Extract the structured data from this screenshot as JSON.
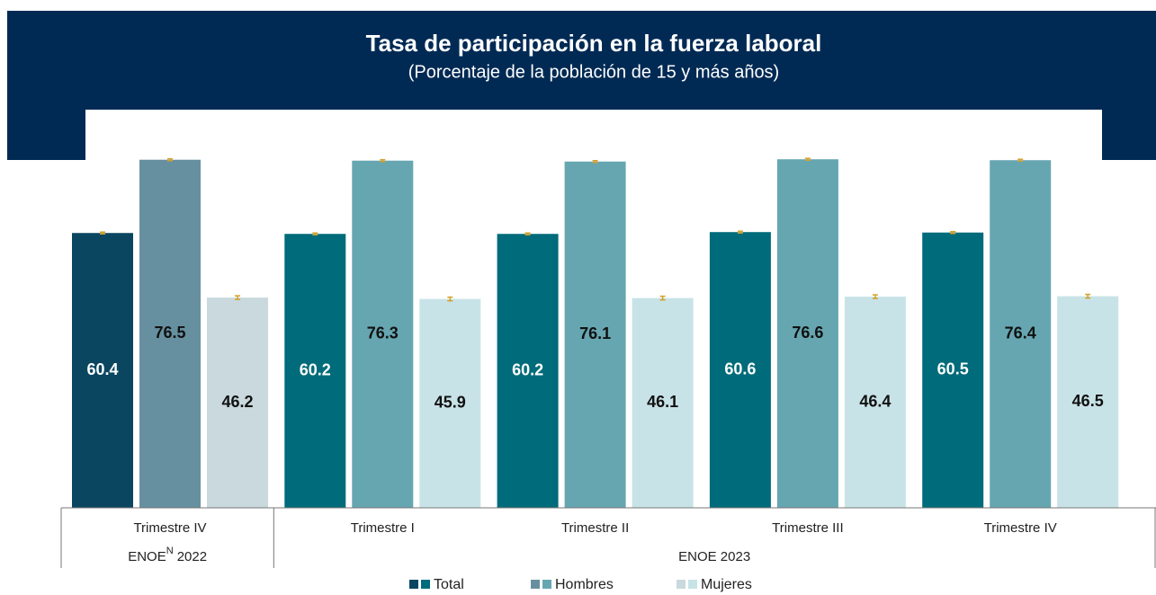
{
  "chart_data": {
    "type": "bar",
    "title": "Tasa de participación en la fuerza laboral",
    "subtitle": "(Porcentaje de la población de 15 y más años)",
    "categories": [
      "Trimestre IV",
      "Trimestre I",
      "Trimestre II",
      "Trimestre III",
      "Trimestre IV"
    ],
    "groups": [
      {
        "name": "ENOE",
        "superscript": "N",
        "year": "2022",
        "size": 1
      },
      {
        "name": "ENOE 2023",
        "size": 4
      }
    ],
    "series": [
      {
        "name": "Total",
        "colors": [
          "#0b4660",
          "#006b7a",
          "#006b7a",
          "#006b7a",
          "#006b7a"
        ],
        "values": [
          60.4,
          60.2,
          60.2,
          60.6,
          60.5
        ],
        "errors": [
          0.2,
          0.2,
          0.2,
          0.2,
          0.2
        ]
      },
      {
        "name": "Hombres",
        "colors": [
          "#6690a0",
          "#66a6b1",
          "#66a6b1",
          "#66a6b1",
          "#66a6b1"
        ],
        "values": [
          76.5,
          76.3,
          76.1,
          76.6,
          76.4
        ],
        "errors": [
          0.2,
          0.2,
          0.2,
          0.2,
          0.2
        ]
      },
      {
        "name": "Mujeres",
        "colors": [
          "#c9d9de",
          "#c8e3e7",
          "#c8e3e7",
          "#c8e3e7",
          "#c8e3e7"
        ],
        "values": [
          46.2,
          45.9,
          46.1,
          46.4,
          46.5
        ],
        "errors": [
          0.4,
          0.4,
          0.4,
          0.4,
          0.4
        ]
      }
    ],
    "error_color": "#d4a12a",
    "ylim": [
      0,
      80
    ]
  }
}
